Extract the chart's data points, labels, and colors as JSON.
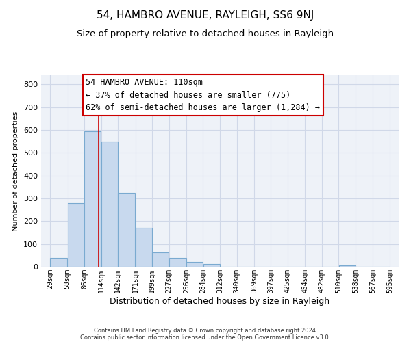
{
  "title": "54, HAMBRO AVENUE, RAYLEIGH, SS6 9NJ",
  "subtitle": "Size of property relative to detached houses in Rayleigh",
  "xlabel": "Distribution of detached houses by size in Rayleigh",
  "ylabel": "Number of detached properties",
  "bar_left_edges": [
    29,
    58,
    86,
    114,
    142,
    171,
    199,
    227,
    256,
    284,
    312,
    340,
    369,
    397,
    425,
    454,
    482,
    510,
    538,
    567
  ],
  "bar_heights": [
    38,
    280,
    595,
    550,
    325,
    170,
    63,
    38,
    20,
    12,
    0,
    0,
    0,
    0,
    0,
    0,
    0,
    5,
    0,
    0
  ],
  "bar_widths": [
    29,
    28,
    28,
    28,
    29,
    28,
    28,
    29,
    28,
    28,
    28,
    29,
    28,
    28,
    29,
    28,
    28,
    28,
    29,
    28
  ],
  "bar_color": "#c8d9ee",
  "bar_edge_color": "#7aaad0",
  "vline_x": 110,
  "vline_color": "#cc0000",
  "annotation_line1": "54 HAMBRO AVENUE: 110sqm",
  "annotation_line2": "← 37% of detached houses are smaller (775)",
  "annotation_line3": "62% of semi-detached houses are larger (1,284) →",
  "tick_labels": [
    "29sqm",
    "58sqm",
    "86sqm",
    "114sqm",
    "142sqm",
    "171sqm",
    "199sqm",
    "227sqm",
    "256sqm",
    "284sqm",
    "312sqm",
    "340sqm",
    "369sqm",
    "397sqm",
    "425sqm",
    "454sqm",
    "482sqm",
    "510sqm",
    "538sqm",
    "567sqm",
    "595sqm"
  ],
  "tick_positions": [
    29,
    58,
    86,
    114,
    142,
    171,
    199,
    227,
    256,
    284,
    312,
    340,
    369,
    397,
    425,
    454,
    482,
    510,
    538,
    567,
    595
  ],
  "ylim": [
    0,
    840
  ],
  "xlim": [
    14,
    610
  ],
  "yticks": [
    0,
    100,
    200,
    300,
    400,
    500,
    600,
    700,
    800
  ],
  "grid_color": "#d0d8e8",
  "bg_color": "#eef2f8",
  "footer_line1": "Contains HM Land Registry data © Crown copyright and database right 2024.",
  "footer_line2": "Contains public sector information licensed under the Open Government Licence v3.0.",
  "title_fontsize": 11,
  "subtitle_fontsize": 9.5,
  "xlabel_fontsize": 9,
  "ylabel_fontsize": 8,
  "tick_fontsize": 7,
  "ytick_fontsize": 8,
  "annotation_fontsize": 8.5,
  "footer_fontsize": 6
}
